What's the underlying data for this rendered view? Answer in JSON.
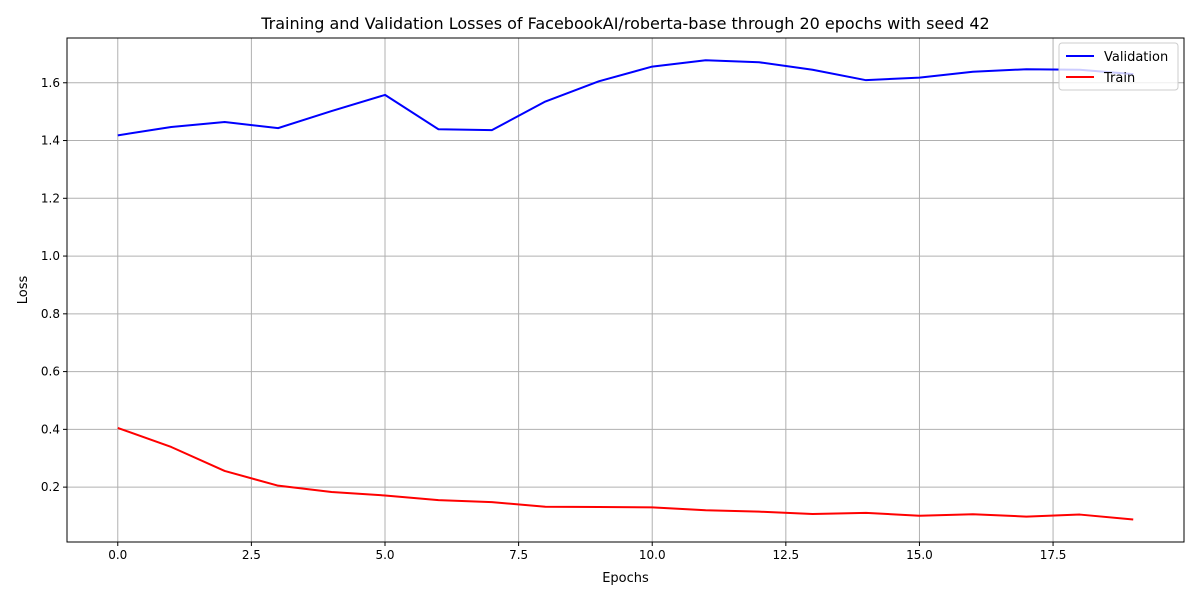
{
  "chart_data": {
    "type": "line",
    "title": "Training and Validation Losses of FacebookAI/roberta-base through 20 epochs with seed 42",
    "xlabel": "Epochs",
    "ylabel": "Loss",
    "xlim": [
      -0.95,
      19.95
    ],
    "ylim": [
      0.01,
      1.755
    ],
    "xticks": [
      0.0,
      2.5,
      5.0,
      7.5,
      10.0,
      12.5,
      15.0,
      17.5
    ],
    "xtick_labels": [
      "0.0",
      "2.5",
      "5.0",
      "7.5",
      "10.0",
      "12.5",
      "15.0",
      "17.5"
    ],
    "yticks": [
      0.2,
      0.4,
      0.6,
      0.8,
      1.0,
      1.2,
      1.4,
      1.6
    ],
    "ytick_labels": [
      "0.2",
      "0.4",
      "0.6",
      "0.8",
      "1.0",
      "1.2",
      "1.4",
      "1.6"
    ],
    "grid": true,
    "legend_position": "top-right",
    "x": [
      0,
      1,
      2,
      3,
      4,
      5,
      6,
      7,
      8,
      9,
      10,
      11,
      12,
      13,
      14,
      15,
      16,
      17,
      18,
      19
    ],
    "series": [
      {
        "name": "Validation",
        "color": "#0000ff",
        "values": [
          1.418,
          1.447,
          1.464,
          1.443,
          1.502,
          1.558,
          1.439,
          1.436,
          1.535,
          1.605,
          1.656,
          1.678,
          1.671,
          1.645,
          1.609,
          1.618,
          1.638,
          1.647,
          1.645,
          1.63
        ]
      },
      {
        "name": "Train",
        "color": "#ff0000",
        "values": [
          0.405,
          0.339,
          0.256,
          0.205,
          0.183,
          0.171,
          0.155,
          0.148,
          0.132,
          0.131,
          0.13,
          0.12,
          0.115,
          0.107,
          0.111,
          0.101,
          0.106,
          0.098,
          0.105,
          0.088
        ]
      }
    ]
  }
}
